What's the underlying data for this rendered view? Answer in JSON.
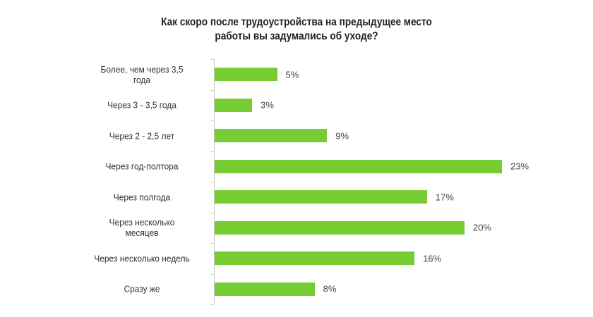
{
  "title": {
    "line1": "Как скоро после трудоустройства  на предыдущее место",
    "line2": "работы вы задумались об уходе?"
  },
  "colors": {
    "bar": "#77cc33",
    "axis": "#c8c8c8",
    "text": "#333333"
  },
  "chart_data": {
    "type": "bar",
    "orientation": "horizontal",
    "title": "Как скоро после трудоустройства на предыдущее место работы вы задумались об уходе?",
    "categories": [
      "Более, чем через 3,5 года",
      "Через 3 - 3,5 года",
      "Через 2 - 2,5 лет",
      "Через год-полтора",
      "Через полгода",
      "Через несколько месяцев",
      "Через несколько недель",
      "Сразу же"
    ],
    "values": [
      5,
      3,
      9,
      23,
      17,
      20,
      16,
      8
    ],
    "value_labels": [
      "5%",
      "3%",
      "9%",
      "23%",
      "17%",
      "20%",
      "16%",
      "8%"
    ],
    "unit": "%",
    "xlabel": "",
    "ylabel": "",
    "xlim": [
      0,
      25
    ],
    "grid": false,
    "legend": null,
    "data_labels": true
  },
  "rows": [
    {
      "label_l1": "Более, чем через 3,5",
      "label_l2": "года",
      "value": "5%"
    },
    {
      "label_l1": "Через 3 - 3,5 года",
      "label_l2": "",
      "value": "3%"
    },
    {
      "label_l1": "Через 2 - 2,5 лет",
      "label_l2": "",
      "value": "9%"
    },
    {
      "label_l1": "Через год-полтора",
      "label_l2": "",
      "value": "23%"
    },
    {
      "label_l1": "Через полгода",
      "label_l2": "",
      "value": "17%"
    },
    {
      "label_l1": "Через несколько",
      "label_l2": "месяцев",
      "value": "20%"
    },
    {
      "label_l1": "Через несколько недель",
      "label_l2": "",
      "value": "16%"
    },
    {
      "label_l1": "Сразу же",
      "label_l2": "",
      "value": "8%"
    }
  ]
}
